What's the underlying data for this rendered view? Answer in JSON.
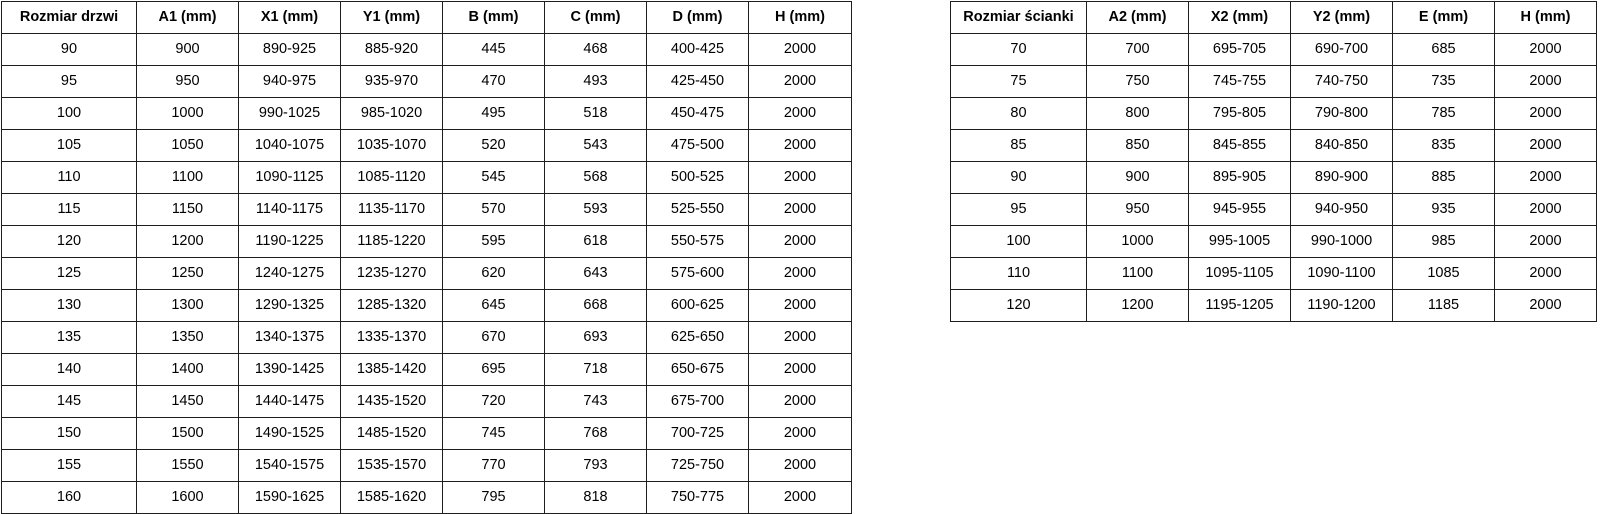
{
  "colors": {
    "background": "#ffffff",
    "border": "#1e1e1e",
    "text": "#000000"
  },
  "door_table": {
    "title": "Rozmiar drzwi",
    "headers": [
      "Rozmiar drzwi",
      "A1 (mm)",
      "X1 (mm)",
      "Y1 (mm)",
      "B (mm)",
      "C (mm)",
      "D (mm)",
      "H (mm)"
    ],
    "rows": [
      [
        "90",
        "900",
        "890-925",
        "885-920",
        "445",
        "468",
        "400-425",
        "2000"
      ],
      [
        "95",
        "950",
        "940-975",
        "935-970",
        "470",
        "493",
        "425-450",
        "2000"
      ],
      [
        "100",
        "1000",
        "990-1025",
        "985-1020",
        "495",
        "518",
        "450-475",
        "2000"
      ],
      [
        "105",
        "1050",
        "1040-1075",
        "1035-1070",
        "520",
        "543",
        "475-500",
        "2000"
      ],
      [
        "110",
        "1100",
        "1090-1125",
        "1085-1120",
        "545",
        "568",
        "500-525",
        "2000"
      ],
      [
        "115",
        "1150",
        "1140-1175",
        "1135-1170",
        "570",
        "593",
        "525-550",
        "2000"
      ],
      [
        "120",
        "1200",
        "1190-1225",
        "1185-1220",
        "595",
        "618",
        "550-575",
        "2000"
      ],
      [
        "125",
        "1250",
        "1240-1275",
        "1235-1270",
        "620",
        "643",
        "575-600",
        "2000"
      ],
      [
        "130",
        "1300",
        "1290-1325",
        "1285-1320",
        "645",
        "668",
        "600-625",
        "2000"
      ],
      [
        "135",
        "1350",
        "1340-1375",
        "1335-1370",
        "670",
        "693",
        "625-650",
        "2000"
      ],
      [
        "140",
        "1400",
        "1390-1425",
        "1385-1420",
        "695",
        "718",
        "650-675",
        "2000"
      ],
      [
        "145",
        "1450",
        "1440-1475",
        "1435-1520",
        "720",
        "743",
        "675-700",
        "2000"
      ],
      [
        "150",
        "1500",
        "1490-1525",
        "1485-1520",
        "745",
        "768",
        "700-725",
        "2000"
      ],
      [
        "155",
        "1550",
        "1540-1575",
        "1535-1570",
        "770",
        "793",
        "725-750",
        "2000"
      ],
      [
        "160",
        "1600",
        "1590-1625",
        "1585-1620",
        "795",
        "818",
        "750-775",
        "2000"
      ]
    ]
  },
  "wall_table": {
    "title": "Rozmiar ścianki",
    "headers": [
      "Rozmiar ścianki",
      "A2 (mm)",
      "X2 (mm)",
      "Y2 (mm)",
      "E (mm)",
      "H (mm)"
    ],
    "rows": [
      [
        "70",
        "700",
        "695-705",
        "690-700",
        "685",
        "2000"
      ],
      [
        "75",
        "750",
        "745-755",
        "740-750",
        "735",
        "2000"
      ],
      [
        "80",
        "800",
        "795-805",
        "790-800",
        "785",
        "2000"
      ],
      [
        "85",
        "850",
        "845-855",
        "840-850",
        "835",
        "2000"
      ],
      [
        "90",
        "900",
        "895-905",
        "890-900",
        "885",
        "2000"
      ],
      [
        "95",
        "950",
        "945-955",
        "940-950",
        "935",
        "2000"
      ],
      [
        "100",
        "1000",
        "995-1005",
        "990-1000",
        "985",
        "2000"
      ],
      [
        "110",
        "1100",
        "1095-1105",
        "1090-1100",
        "1085",
        "2000"
      ],
      [
        "120",
        "1200",
        "1195-1205",
        "1190-1200",
        "1185",
        "2000"
      ]
    ]
  }
}
